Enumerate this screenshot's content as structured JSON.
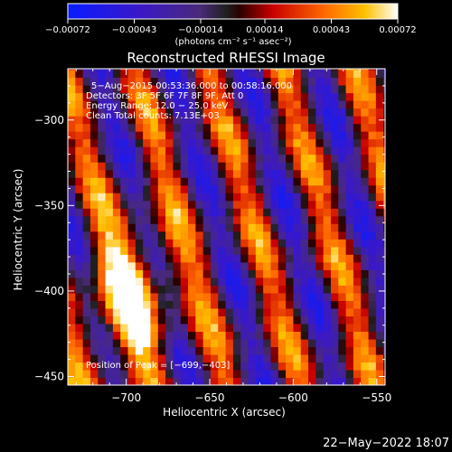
{
  "chart_data": {
    "type": "heatmap",
    "title": "Reconstructed RHESSI Image",
    "xlabel": "Heliocentric X (arcsec)",
    "ylabel": "Heliocentric Y (arcsec)",
    "xlim": [
      -735,
      -545
    ],
    "ylim": [
      -455,
      -270
    ],
    "xticks": [
      -700,
      -650,
      -600,
      -550
    ],
    "xtick_labels": [
      "−700",
      "−650",
      "−600",
      "−550"
    ],
    "yticks": [
      -300,
      -350,
      -400,
      -450
    ],
    "ytick_labels": [
      "−300",
      "−350",
      "−400",
      "−450"
    ],
    "colorbar": {
      "min": -0.00072,
      "max": 0.00072,
      "ticks": [
        -0.00072,
        -0.00043,
        -0.00014,
        0.00014,
        0.00043,
        0.00072
      ],
      "tick_labels": [
        "−0.00072",
        "−0.00043",
        "−0.00014",
        "0.00014",
        "0.00043",
        "0.00072"
      ],
      "unit_label": "(photons cm⁻² s⁻¹ asec⁻²)"
    },
    "annotations": [
      "5−Aug−2015 00:53:36.000  to 00:58:16.000",
      "Detectors: 3F 5F 6F 7F 8F 9F, Att 0",
      "Energy Range: 12.0 − 25.0 keV",
      "Clean     Total counts: 7.13E+03"
    ],
    "peak_label": "Position of Peak = [−699,−403]",
    "peak": {
      "x": -699,
      "y": -403
    },
    "grid": false,
    "colormap": "rhessi-diverging"
  },
  "footer": {
    "timestamp": "22−May−2022 18:07"
  }
}
